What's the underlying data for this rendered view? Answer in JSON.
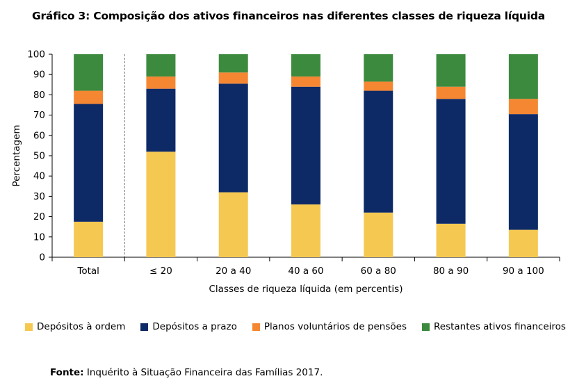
{
  "chart_data": {
    "type": "bar",
    "stacked": true,
    "title": "Gráfico 3: Composição dos ativos financeiros nas diferentes classes de riqueza líquida",
    "xlabel": "Classes de riqueza líquida (em percentis)",
    "ylabel": "Percentagem",
    "ylim": [
      0,
      100
    ],
    "yticks": [
      "0",
      "10",
      "20",
      "30",
      "40",
      "50",
      "60",
      "70",
      "80",
      "90",
      "100"
    ],
    "categories": [
      "Total",
      "≤ 20",
      "20 a 40",
      "40 a 60",
      "60 a 80",
      "80 a 90",
      "90 a 100"
    ],
    "series": [
      {
        "name": "Depósitos à ordem",
        "color": "#F5C851",
        "values": [
          17.5,
          52,
          32,
          26,
          22,
          16.5,
          13.5
        ]
      },
      {
        "name": "Depósitos a prazo",
        "color": "#0D2A67",
        "values": [
          58,
          31,
          53.5,
          58,
          60,
          61.5,
          57
        ]
      },
      {
        "name": "Planos voluntários de pensões",
        "color": "#F58732",
        "values": [
          6.5,
          6,
          5.5,
          5,
          4.5,
          6,
          7.5
        ]
      },
      {
        "name": "Restantes ativos financeiros",
        "color": "#3C8A3E",
        "values": [
          18,
          11,
          9,
          11,
          13.5,
          16,
          22
        ]
      }
    ],
    "legend_position": "bottom"
  },
  "source": {
    "label": "Fonte:",
    "text": "Inquérito à Situação Financeira das Famílias 2017."
  }
}
